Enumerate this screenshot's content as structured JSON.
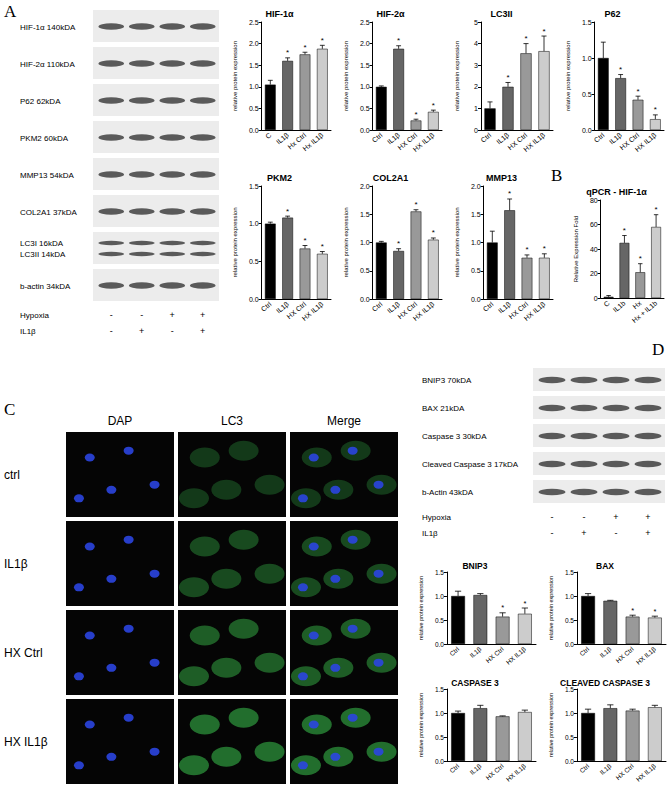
{
  "panel_labels": [
    "A",
    "B",
    "C",
    "D"
  ],
  "chart_data": [
    {
      "type": "bar",
      "title": "HIF-1α",
      "y_label": "relative protein expression",
      "categories": [
        "C",
        "IL1β",
        "Hx Ctrl",
        "Hx IL1β"
      ],
      "values": [
        1.05,
        1.6,
        1.75,
        1.88
      ],
      "errors": [
        0.1,
        0.07,
        0.05,
        0.08
      ],
      "significant": [
        false,
        true,
        true,
        true
      ],
      "annotation": "*",
      "colors": [
        "#000000",
        "#666666",
        "#999999",
        "#cccccc"
      ],
      "ylim": [
        0,
        2.5
      ],
      "yticks": [
        {
          "value": 0,
          "label": "0.0"
        },
        0.5,
        {
          "value": 1,
          "label": "1.0"
        },
        1.5,
        {
          "value": 2,
          "label": "2.0"
        },
        2.5
      ],
      "grid": false
    },
    {
      "type": "bar",
      "title": "HIF-2α",
      "y_label": "relative protein expression",
      "categories": [
        "Ctrl",
        "IL1β",
        "HX Ctrl",
        "HX IL1β"
      ],
      "values": [
        1.0,
        1.88,
        0.22,
        0.42
      ],
      "errors": [
        0.02,
        0.07,
        0.03,
        0.04
      ],
      "significant": [
        false,
        true,
        true,
        true
      ],
      "annotation": "*",
      "colors": [
        "#000000",
        "#666666",
        "#999999",
        "#cccccc"
      ],
      "ylim": [
        0,
        2.5
      ],
      "yticks": [
        {
          "value": 0,
          "label": "0.0"
        },
        0.5,
        {
          "value": 1,
          "label": "1.0"
        },
        1.5,
        {
          "value": 2,
          "label": "2.0"
        },
        2.5
      ],
      "grid": false
    },
    {
      "type": "bar",
      "title": "LC3II",
      "y_label": "relative protein expression",
      "categories": [
        "Ctrl",
        "IL1β",
        "HX Ctrl",
        "HX IL1β"
      ],
      "values": [
        1.0,
        2.0,
        3.55,
        3.65
      ],
      "errors": [
        0.3,
        0.2,
        0.45,
        0.7
      ],
      "significant": [
        false,
        true,
        true,
        true
      ],
      "annotation": "*",
      "colors": [
        "#000000",
        "#666666",
        "#999999",
        "#cccccc"
      ],
      "ylim": [
        0,
        5
      ],
      "yticks": [
        0,
        1,
        2,
        3,
        4,
        5
      ],
      "grid": false
    },
    {
      "type": "bar",
      "title": "P62",
      "y_label": "relative protein expression",
      "categories": [
        "Ctrl",
        "IL1β",
        "HX Ctrl",
        "HX IL1β"
      ],
      "values": [
        1.0,
        0.72,
        0.42,
        0.15
      ],
      "errors": [
        0.22,
        0.05,
        0.05,
        0.06
      ],
      "significant": [
        false,
        true,
        true,
        true
      ],
      "annotation": "*",
      "colors": [
        "#000000",
        "#666666",
        "#999999",
        "#cccccc"
      ],
      "ylim": [
        0,
        1.5
      ],
      "yticks": [
        {
          "value": 0,
          "label": "0.0"
        },
        0.5,
        {
          "value": 1,
          "label": "1.0"
        },
        1.5
      ],
      "grid": false
    },
    {
      "type": "bar",
      "title": "PKM2",
      "y_label": "relative protein expression",
      "categories": [
        "Ctrl",
        "IL1β",
        "HX Ctrl",
        "HX IL1β"
      ],
      "values": [
        1.0,
        1.08,
        0.67,
        0.6
      ],
      "errors": [
        0.02,
        0.02,
        0.04,
        0.03
      ],
      "significant": [
        false,
        true,
        true,
        true
      ],
      "annotation": "*",
      "colors": [
        "#000000",
        "#666666",
        "#999999",
        "#cccccc"
      ],
      "ylim": [
        0,
        1.5
      ],
      "yticks": [
        {
          "value": 0,
          "label": "0.0"
        },
        0.5,
        {
          "value": 1,
          "label": "1.0"
        },
        1.5
      ],
      "grid": false
    },
    {
      "type": "bar",
      "title": "COL2A1",
      "y_label": "relative protein expression",
      "categories": [
        "Ctrl",
        "IL1β",
        "HX Ctrl",
        "HX IL1β"
      ],
      "values": [
        1.0,
        0.85,
        1.55,
        1.05
      ],
      "errors": [
        0.02,
        0.04,
        0.03,
        0.03
      ],
      "significant": [
        false,
        true,
        true,
        true
      ],
      "annotation": "*",
      "colors": [
        "#000000",
        "#666666",
        "#999999",
        "#cccccc"
      ],
      "ylim": [
        0,
        2
      ],
      "yticks": [
        {
          "value": 0,
          "label": "0.0"
        },
        0.5,
        {
          "value": 1,
          "label": "1.0"
        },
        1.5,
        {
          "value": 2,
          "label": "2.0"
        }
      ],
      "grid": false
    },
    {
      "type": "bar",
      "title": "MMP13",
      "y_label": "relative protein expression",
      "categories": [
        "Ctrl",
        "IL1β",
        "HX Ctrl",
        "HX IL1β"
      ],
      "values": [
        1.0,
        1.57,
        0.73,
        0.73
      ],
      "errors": [
        0.2,
        0.2,
        0.05,
        0.07
      ],
      "significant": [
        false,
        true,
        true,
        true
      ],
      "annotation": "*",
      "colors": [
        "#000000",
        "#666666",
        "#999999",
        "#cccccc"
      ],
      "ylim": [
        0,
        2
      ],
      "yticks": [
        {
          "value": 0,
          "label": "0.0"
        },
        0.5,
        {
          "value": 1,
          "label": "1.0"
        },
        1.5,
        {
          "value": 2,
          "label": "2.0"
        }
      ],
      "grid": false
    },
    {
      "type": "bar",
      "title": "qPCR - HIF-1α",
      "y_label": "Relative Expression Fold",
      "categories": [
        "C",
        "IL1b",
        "Hx",
        "Hx + IL1b"
      ],
      "values": [
        1,
        45,
        21,
        58
      ],
      "errors": [
        1,
        6,
        7,
        10
      ],
      "significant": [
        false,
        true,
        true,
        true
      ],
      "annotation": "*",
      "colors": [
        "#000000",
        "#666666",
        "#999999",
        "#cccccc"
      ],
      "ylim": [
        0,
        80
      ],
      "yticks": [
        0,
        20,
        40,
        60,
        80
      ],
      "grid": false
    },
    {
      "type": "bar",
      "title": "BNIP3",
      "y_label": "relative protein expression",
      "categories": [
        "Ctrl",
        "IL1β",
        "HX Ctrl",
        "HX IL1β"
      ],
      "values": [
        1.0,
        1.02,
        0.57,
        0.63
      ],
      "errors": [
        0.1,
        0.03,
        0.08,
        0.12
      ],
      "significant": [
        false,
        false,
        true,
        true
      ],
      "annotation": "*",
      "colors": [
        "#000000",
        "#666666",
        "#999999",
        "#cccccc"
      ],
      "ylim": [
        0,
        1.5
      ],
      "yticks": [
        {
          "value": 0,
          "label": "0.0"
        },
        0.5,
        {
          "value": 1,
          "label": "1.0"
        },
        1.5
      ],
      "grid": false
    },
    {
      "type": "bar",
      "title": "BAX",
      "y_label": "relative protein expression",
      "categories": [
        "Ctrl",
        "IL1β",
        "HX Ctrl",
        "HX IL1β"
      ],
      "values": [
        1.0,
        0.9,
        0.57,
        0.55
      ],
      "errors": [
        0.05,
        0.01,
        0.03,
        0.03
      ],
      "significant": [
        false,
        false,
        true,
        true
      ],
      "annotation": "*",
      "colors": [
        "#000000",
        "#666666",
        "#999999",
        "#cccccc"
      ],
      "ylim": [
        0,
        1.5
      ],
      "yticks": [
        {
          "value": 0,
          "label": "0.0"
        },
        0.5,
        {
          "value": 1,
          "label": "1.0"
        },
        1.5
      ],
      "grid": false
    },
    {
      "type": "bar",
      "title": "CASPASE 3",
      "y_label": "relative protein expression",
      "categories": [
        "Ctrl",
        "IL1β",
        "HX Ctrl",
        "HX IL1β"
      ],
      "values": [
        1.0,
        1.1,
        0.93,
        1.02
      ],
      "errors": [
        0.04,
        0.06,
        0.01,
        0.04
      ],
      "significant": [
        false,
        false,
        false,
        false
      ],
      "annotation": "*",
      "colors": [
        "#000000",
        "#666666",
        "#999999",
        "#cccccc"
      ],
      "ylim": [
        0,
        1.5
      ],
      "yticks": [
        {
          "value": 0,
          "label": "0.0"
        },
        0.5,
        {
          "value": 1,
          "label": "1.0"
        },
        1.5
      ],
      "grid": false
    },
    {
      "type": "bar",
      "title": "CLEAVED CASPASE 3",
      "y_label": "relative protein expression",
      "categories": [
        "Ctrl",
        "IL1β",
        "HX Ctrl",
        "HX IL1β"
      ],
      "values": [
        1.0,
        1.1,
        1.05,
        1.12
      ],
      "errors": [
        0.08,
        0.07,
        0.03,
        0.04
      ],
      "significant": [
        false,
        false,
        false,
        false
      ],
      "annotation": "*",
      "colors": [
        "#000000",
        "#666666",
        "#999999",
        "#cccccc"
      ],
      "ylim": [
        0,
        1.5
      ],
      "yticks": [
        {
          "value": 0,
          "label": "0.0"
        },
        0.5,
        {
          "value": 1,
          "label": "1.0"
        },
        1.5
      ],
      "grid": false
    }
  ],
  "blots": [
    {
      "bands": [
        [
          "HIF-1α 140kDA"
        ],
        [
          "HIF-2α 110kDA"
        ],
        [
          "P62 62kDA"
        ],
        [
          "PKM2 60kDA"
        ],
        [
          "MMP13 54kDA"
        ],
        [
          "COL2A1 37kDA"
        ],
        [
          "LC3I 16kDA",
          "LC3II 14kDA"
        ],
        [
          "b-actin 34kDA"
        ]
      ],
      "treatments": [
        {
          "name": "Hypoxia",
          "values": [
            "-",
            "-",
            "+",
            "+"
          ]
        },
        {
          "name": "IL1β",
          "values": [
            "-",
            "+",
            "-",
            "+"
          ]
        }
      ]
    },
    {
      "bands": [
        [
          "BNIP3 70kDA"
        ],
        [
          "BAX 21kDA"
        ],
        [
          "Caspase 3 30kDA"
        ],
        [
          "Cleaved Caspase 3 17kDA"
        ],
        [
          "b-Actin 43kDA"
        ]
      ],
      "treatments": [
        {
          "name": "Hypoxia",
          "values": [
            "-",
            "-",
            "+",
            "+"
          ]
        },
        {
          "name": "IL1β",
          "values": [
            "-",
            "+",
            "-",
            "+"
          ]
        }
      ]
    }
  ],
  "immunofluorescence": {
    "columns": [
      "DAP",
      "LC3",
      "Merge"
    ],
    "rows": [
      "ctrl",
      "IL1β",
      "HX Ctrl",
      "HX IL1β"
    ]
  }
}
